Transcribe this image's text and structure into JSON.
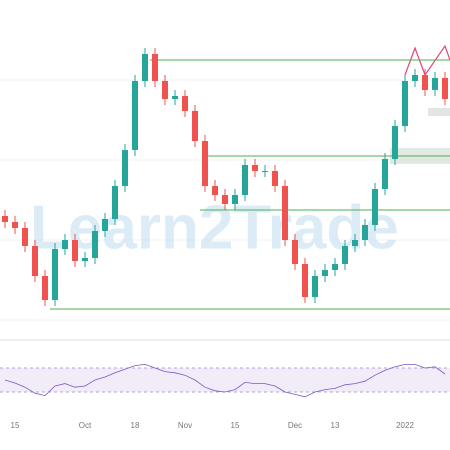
{
  "chart_data": {
    "type": "candlestick",
    "watermark": "Learn2Trade",
    "categories": [
      null,
      "15",
      null,
      null,
      null,
      null,
      null,
      null,
      "Oct",
      null,
      null,
      null,
      null,
      "18",
      null,
      null,
      null,
      null,
      "Nov",
      null,
      null,
      null,
      null,
      "15",
      null,
      null,
      null,
      null,
      null,
      "Dec",
      null,
      null,
      null,
      "13",
      null,
      null,
      null,
      null,
      null,
      null,
      "2022",
      null,
      null,
      null,
      null
    ],
    "open": [
      38,
      36,
      34,
      28,
      18,
      10,
      27,
      30,
      23,
      24,
      33,
      37,
      48,
      60,
      83,
      92,
      83,
      77,
      78,
      73,
      63,
      48,
      45,
      42,
      45,
      55,
      53,
      53,
      48,
      30,
      22,
      11,
      18,
      20,
      22,
      28,
      30,
      35,
      47,
      57,
      68,
      83,
      85,
      80,
      84
    ],
    "high": [
      40,
      38,
      36,
      30,
      20,
      29,
      32,
      32,
      26,
      35,
      39,
      50,
      62,
      85,
      94,
      94,
      85,
      80,
      80,
      75,
      65,
      50,
      47,
      47,
      57,
      57,
      55,
      55,
      50,
      32,
      24,
      20,
      22,
      24,
      30,
      32,
      37,
      49,
      59,
      70,
      85,
      87,
      87,
      86,
      86
    ],
    "low": [
      34,
      32,
      26,
      16,
      8,
      8,
      25,
      21,
      21,
      22,
      31,
      35,
      46,
      58,
      81,
      81,
      75,
      75,
      71,
      61,
      46,
      43,
      40,
      40,
      43,
      51,
      51,
      46,
      28,
      20,
      9,
      9,
      16,
      18,
      20,
      26,
      28,
      33,
      45,
      55,
      66,
      81,
      78,
      78,
      75
    ],
    "close": [
      36,
      34,
      28,
      18,
      10,
      27,
      30,
      23,
      24,
      33,
      37,
      48,
      60,
      83,
      92,
      83,
      77,
      78,
      73,
      63,
      48,
      45,
      42,
      45,
      55,
      53,
      53,
      48,
      30,
      22,
      11,
      18,
      20,
      22,
      28,
      30,
      35,
      47,
      57,
      68,
      83,
      85,
      80,
      84,
      77
    ],
    "up_color": "#26a69a",
    "down_color": "#ef5350",
    "ylim": [
      0,
      100
    ],
    "levels": [
      90,
      58,
      40,
      7
    ],
    "level_color": "#4caf50",
    "indicator": {
      "type": "line",
      "color": "#7e57c2",
      "values": [
        50,
        45,
        38,
        28,
        24,
        40,
        44,
        38,
        40,
        50,
        55,
        62,
        68,
        74,
        76,
        70,
        64,
        62,
        58,
        50,
        38,
        32,
        30,
        34,
        46,
        44,
        44,
        40,
        30,
        26,
        22,
        30,
        34,
        36,
        42,
        44,
        48,
        58,
        66,
        72,
        76,
        76,
        70,
        72,
        60
      ],
      "ylim": [
        0,
        100
      ],
      "band": [
        30,
        70
      ]
    }
  }
}
